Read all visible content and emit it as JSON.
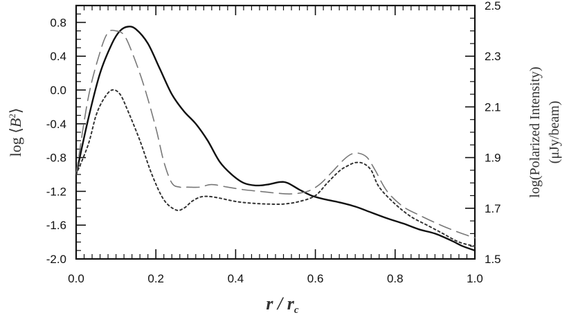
{
  "chart_data": {
    "type": "line",
    "xlabel": "r / r_c",
    "ylabel": "log ⟨B²⟩",
    "ylabel_right": "log(Polarized Intensity) (μJy/beam)",
    "xlim": [
      0.0,
      1.0
    ],
    "ylim": [
      -2.0,
      1.0
    ],
    "ylim_right": [
      1.5,
      2.5
    ],
    "x_ticks": [
      "0.0",
      "0.2",
      "0.4",
      "0.6",
      "0.8",
      "1.0"
    ],
    "y_ticks": [
      "-2.0",
      "-1.6",
      "-1.2",
      "-0.8",
      "-0.4",
      "0.0",
      "0.4",
      "0.8"
    ],
    "y_ticks_right": [
      "1.5",
      "1.7",
      "1.9",
      "2.1",
      "2.3",
      "2.5"
    ],
    "grid": false,
    "legend": "none",
    "series": [
      {
        "style": "solid",
        "color": "#111111",
        "axis": "left",
        "x": [
          0.0,
          0.03,
          0.06,
          0.09,
          0.11,
          0.13,
          0.15,
          0.18,
          0.21,
          0.24,
          0.27,
          0.3,
          0.33,
          0.36,
          0.39,
          0.42,
          0.45,
          0.48,
          0.51,
          0.53,
          0.56,
          0.59,
          0.62,
          0.66,
          0.7,
          0.74,
          0.78,
          0.82,
          0.86,
          0.9,
          0.94,
          0.97,
          1.0
        ],
        "y": [
          -1.0,
          -0.35,
          0.2,
          0.55,
          0.7,
          0.75,
          0.72,
          0.55,
          0.25,
          -0.05,
          -0.25,
          -0.4,
          -0.6,
          -0.85,
          -1.0,
          -1.1,
          -1.13,
          -1.12,
          -1.09,
          -1.1,
          -1.18,
          -1.25,
          -1.29,
          -1.33,
          -1.38,
          -1.45,
          -1.52,
          -1.58,
          -1.65,
          -1.7,
          -1.78,
          -1.85,
          -1.9
        ]
      },
      {
        "style": "dashed",
        "color": "#777777",
        "axis": "left",
        "x": [
          0.0,
          0.03,
          0.06,
          0.08,
          0.1,
          0.12,
          0.14,
          0.17,
          0.2,
          0.22,
          0.24,
          0.26,
          0.28,
          0.31,
          0.34,
          0.38,
          0.42,
          0.46,
          0.5,
          0.54,
          0.58,
          0.61,
          0.64,
          0.67,
          0.69,
          0.71,
          0.73,
          0.75,
          0.78,
          0.82,
          0.86,
          0.9,
          0.94,
          0.98,
          1.0
        ],
        "y": [
          -1.0,
          -0.1,
          0.45,
          0.68,
          0.7,
          0.65,
          0.45,
          0.05,
          -0.45,
          -0.85,
          -1.1,
          -1.15,
          -1.15,
          -1.15,
          -1.12,
          -1.15,
          -1.18,
          -1.2,
          -1.22,
          -1.23,
          -1.2,
          -1.12,
          -0.98,
          -0.83,
          -0.76,
          -0.75,
          -0.8,
          -0.95,
          -1.2,
          -1.38,
          -1.48,
          -1.57,
          -1.65,
          -1.72,
          -1.75
        ]
      },
      {
        "style": "dotted",
        "color": "#333333",
        "axis": "left",
        "x": [
          0.0,
          0.03,
          0.05,
          0.07,
          0.09,
          0.11,
          0.13,
          0.16,
          0.19,
          0.22,
          0.25,
          0.27,
          0.29,
          0.31,
          0.33,
          0.36,
          0.4,
          0.44,
          0.48,
          0.52,
          0.56,
          0.6,
          0.63,
          0.66,
          0.68,
          0.7,
          0.72,
          0.74,
          0.76,
          0.8,
          0.84,
          0.88,
          0.92,
          0.96,
          1.0
        ],
        "y": [
          -1.0,
          -0.65,
          -0.3,
          -0.1,
          0.0,
          -0.05,
          -0.25,
          -0.6,
          -1.0,
          -1.3,
          -1.42,
          -1.4,
          -1.32,
          -1.27,
          -1.26,
          -1.28,
          -1.32,
          -1.34,
          -1.35,
          -1.35,
          -1.32,
          -1.25,
          -1.1,
          -0.96,
          -0.9,
          -0.86,
          -0.87,
          -0.95,
          -1.15,
          -1.35,
          -1.5,
          -1.6,
          -1.7,
          -1.8,
          -1.85
        ]
      }
    ]
  }
}
